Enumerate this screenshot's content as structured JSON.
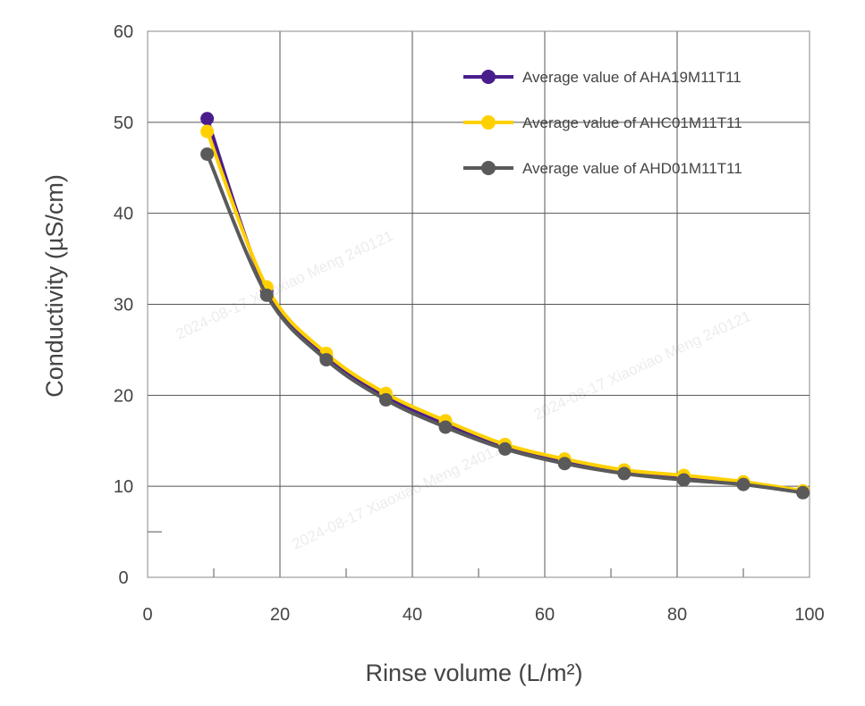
{
  "chart_data": {
    "type": "line",
    "title": "",
    "xlabel": "Rinse volume (L/m²)",
    "ylabel": "Conductivity (µS/cm)",
    "xlim": [
      0,
      100
    ],
    "ylim": [
      0,
      60
    ],
    "xticks": [
      0,
      20,
      40,
      60,
      80,
      100
    ],
    "yticks": [
      0,
      10,
      20,
      30,
      40,
      50,
      60
    ],
    "grid": true,
    "legend_position": "top-right",
    "x": [
      9,
      18,
      27,
      36,
      45,
      54,
      63,
      72,
      81,
      90,
      99
    ],
    "series": [
      {
        "name": "Average value of AHA19M11T11",
        "color": "#4a1d8c",
        "values": [
          50.4,
          31.5,
          24.2,
          19.8,
          16.8,
          14.3,
          12.7,
          11.6,
          10.9,
          10.3,
          9.4
        ]
      },
      {
        "name": "Average value of AHC01M11T11",
        "color": "#ffd000",
        "values": [
          49.0,
          31.9,
          24.6,
          20.2,
          17.2,
          14.6,
          13.0,
          11.8,
          11.2,
          10.5,
          9.5
        ]
      },
      {
        "name": "Average value of AHD01M11T11",
        "color": "#5a5a5a",
        "values": [
          46.5,
          31.0,
          23.9,
          19.5,
          16.5,
          14.1,
          12.5,
          11.4,
          10.7,
          10.2,
          9.3
        ]
      }
    ]
  },
  "watermark": "2024-08-17  Xiaoxiao Meng  240121"
}
